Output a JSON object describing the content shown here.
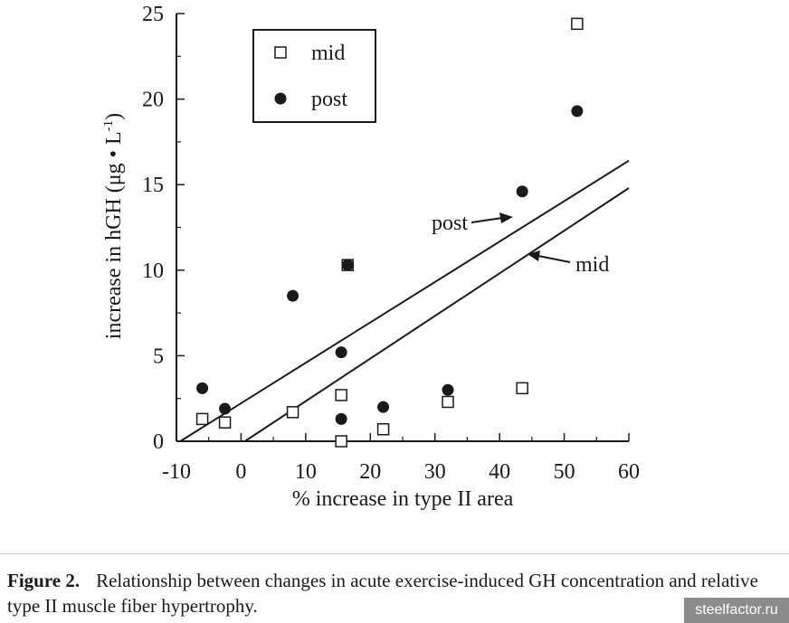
{
  "chart_data": {
    "type": "scatter",
    "xlabel": "% increase in type II area",
    "ylabel": "increase in hGH (μg • L",
    "ylabel_sup": "-1",
    "ylabel_close": ")",
    "xlim": [
      -10,
      60
    ],
    "ylim": [
      0,
      25
    ],
    "xticks": [
      -10,
      0,
      10,
      20,
      30,
      40,
      50,
      60
    ],
    "yticks": [
      0,
      5,
      10,
      15,
      20,
      25
    ],
    "legend": {
      "placement": "top-left",
      "entries": [
        "mid",
        "post"
      ]
    },
    "series": [
      {
        "name": "mid",
        "marker": "open-square",
        "points": [
          {
            "x": -6,
            "y": 1.3
          },
          {
            "x": -2.5,
            "y": 1.1
          },
          {
            "x": 8,
            "y": 1.7
          },
          {
            "x": 15.5,
            "y": 2.7
          },
          {
            "x": 15.5,
            "y": 0.0
          },
          {
            "x": 16.5,
            "y": 10.3
          },
          {
            "x": 22,
            "y": 0.7
          },
          {
            "x": 32,
            "y": 2.3
          },
          {
            "x": 43.5,
            "y": 3.1
          },
          {
            "x": 52,
            "y": 24.4
          }
        ]
      },
      {
        "name": "post",
        "marker": "filled-circle",
        "points": [
          {
            "x": -6,
            "y": 3.1
          },
          {
            "x": -2.5,
            "y": 1.9
          },
          {
            "x": 8,
            "y": 8.5
          },
          {
            "x": 15.5,
            "y": 5.2
          },
          {
            "x": 15.5,
            "y": 1.3
          },
          {
            "x": 16.5,
            "y": 10.3
          },
          {
            "x": 22,
            "y": 2.0
          },
          {
            "x": 32,
            "y": 3.0
          },
          {
            "x": 43.5,
            "y": 14.6
          },
          {
            "x": 52,
            "y": 19.3
          }
        ]
      }
    ],
    "fit_lines": [
      {
        "name": "post",
        "x": [
          -9.4,
          60
        ],
        "y": [
          0,
          16.4
        ]
      },
      {
        "name": "mid",
        "x": [
          0.6,
          60
        ],
        "y": [
          0,
          14.8
        ]
      }
    ],
    "annotations": [
      {
        "text": "post",
        "arrow_to": [
          43.2,
          12.8
        ]
      },
      {
        "text": "mid",
        "arrow_to": [
          46,
          10.8
        ]
      }
    ]
  },
  "caption": {
    "label": "Figure 2.",
    "text": "Relationship between changes in acute exercise-induced GH concentration and relative type II muscle fiber hypertrophy."
  },
  "watermark": "steelfactor.ru"
}
